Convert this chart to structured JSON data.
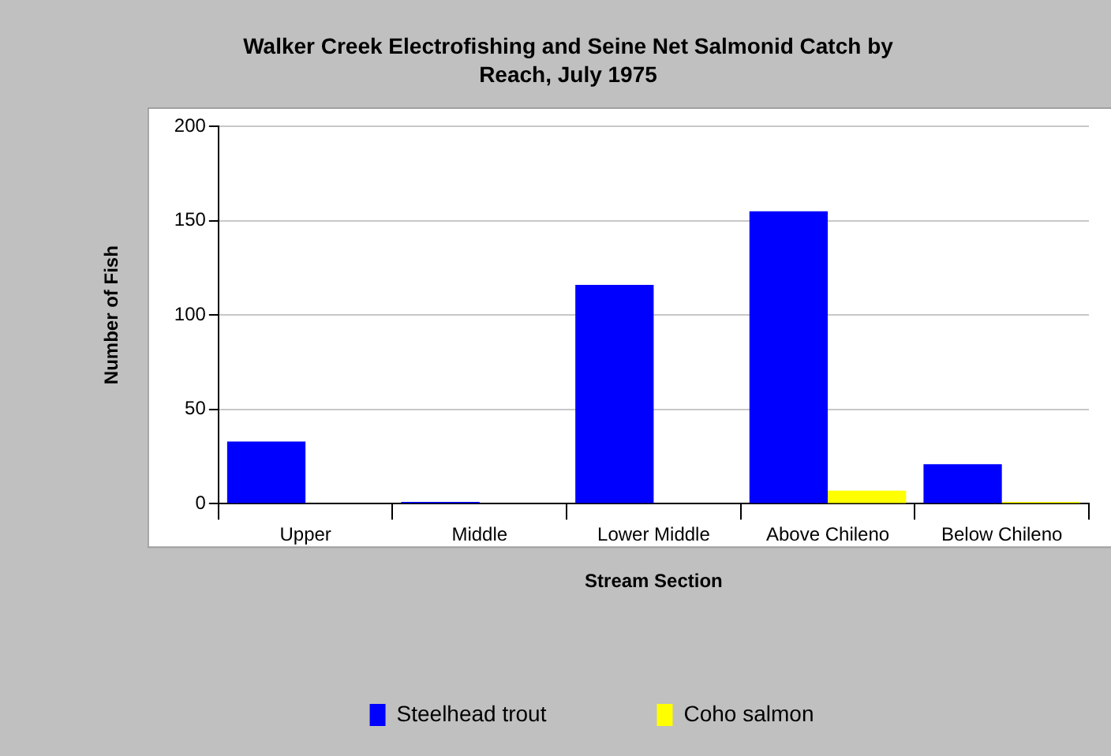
{
  "chart_data": {
    "type": "bar",
    "title": "Walker Creek Electrofishing and Seine Net Salmonid Catch by Reach, July 1975",
    "xlabel": "Stream Section",
    "ylabel": "Number of Fish",
    "categories": [
      "Upper",
      "Middle",
      "Lower Middle",
      "Above Chileno",
      "Below Chileno"
    ],
    "series": [
      {
        "name": "Steelhead trout",
        "color": "#0000ff",
        "values": [
          33,
          1,
          116,
          155,
          21
        ]
      },
      {
        "name": "Coho salmon",
        "color": "#ffff00",
        "values": [
          0,
          0,
          0,
          7,
          1
        ]
      }
    ],
    "ylim": [
      0,
      200
    ],
    "yticks": [
      0,
      50,
      100,
      150,
      200
    ],
    "grid": "y",
    "legend": "bottom"
  }
}
